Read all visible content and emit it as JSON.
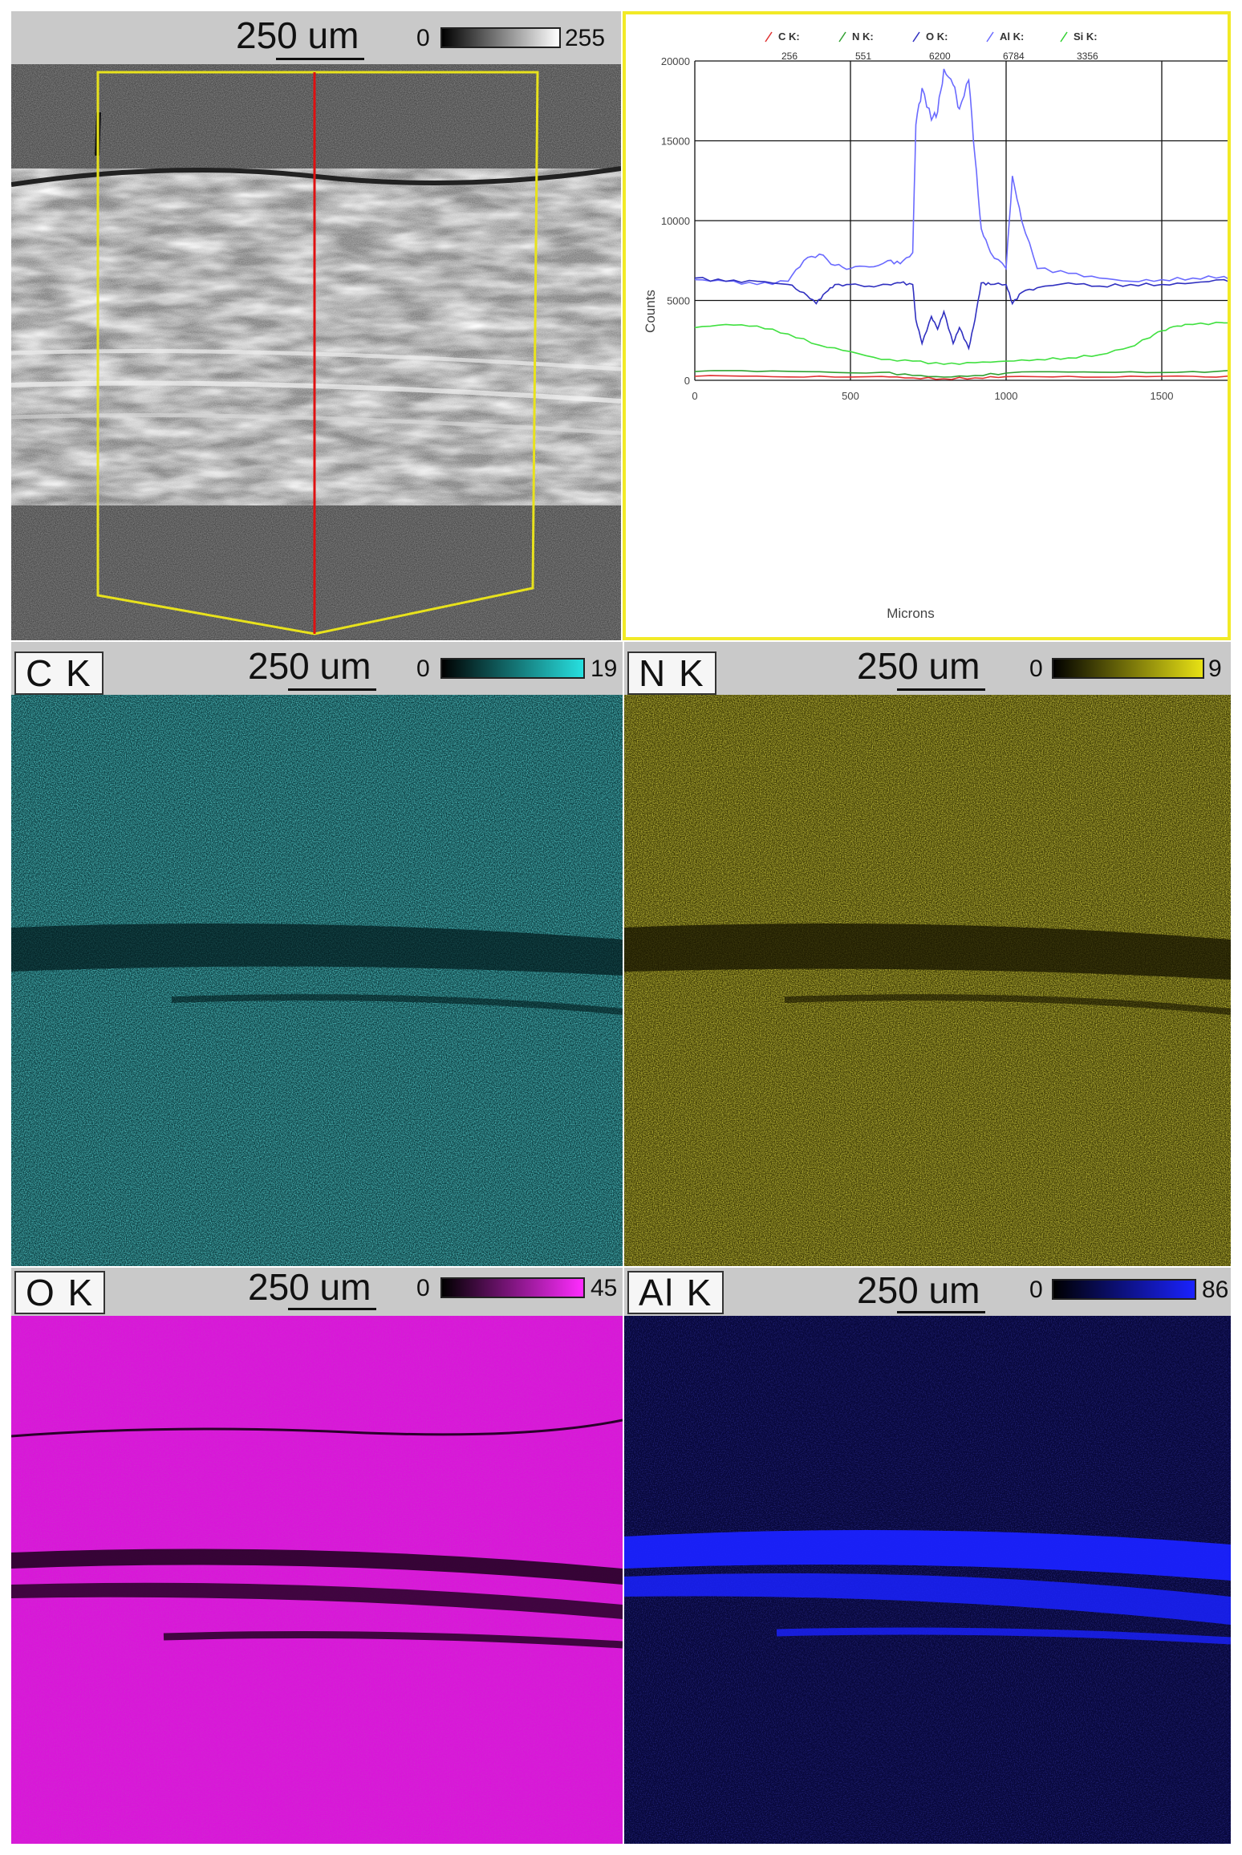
{
  "colors": {
    "sem": "#8a8a8a",
    "C_K": "#27e0e0",
    "N_K": "#e8e214",
    "O_K": "#ff2cff",
    "Al_K": "#1a22ff",
    "chart_frame": "#f2ea26",
    "line_red": "#e01010",
    "roi_yellow": "#e8e21c"
  },
  "panels": {
    "sem": {
      "element": "",
      "scale": "250 um",
      "cb_min": "0",
      "cb_max": "255"
    },
    "c_k": {
      "element": "C K",
      "scale": "250 um",
      "cb_min": "0",
      "cb_max": "19"
    },
    "n_k": {
      "element": "N K",
      "scale": "250 um",
      "cb_min": "0",
      "cb_max": "9"
    },
    "o_k": {
      "element": "O K",
      "scale": "250 um",
      "cb_min": "0",
      "cb_max": "45"
    },
    "al_k": {
      "element": "Al K",
      "scale": "250 um",
      "cb_min": "0",
      "cb_max": "86"
    }
  },
  "chart_data": {
    "type": "line",
    "title": "",
    "xlabel": "Microns",
    "ylabel": "Counts",
    "xlim": [
      0,
      2000
    ],
    "ylim": [
      0,
      20000
    ],
    "xticks": [
      "0",
      "500",
      "1000",
      "1500",
      "2000"
    ],
    "yticks": [
      "0",
      "5000",
      "10000",
      "15000",
      "20000"
    ],
    "grid": true,
    "legend_position": "top",
    "legend": [
      {
        "label": "C K:",
        "value": "256",
        "color": "#e03030"
      },
      {
        "label": "N K:",
        "value": "551",
        "color": "#30a030"
      },
      {
        "label": "O K:",
        "value": "6200",
        "color": "#3030c0"
      },
      {
        "label": "Al K:",
        "value": "6784",
        "color": "#6a6aff"
      },
      {
        "label": "Si K:",
        "value": "3356",
        "color": "#30d030"
      }
    ],
    "series": [
      {
        "name": "Al K",
        "color": "#6a6aff",
        "x": [
          0,
          100,
          200,
          300,
          350,
          400,
          450,
          500,
          560,
          620,
          660,
          700,
          710,
          730,
          760,
          780,
          800,
          830,
          850,
          880,
          900,
          920,
          950,
          1000,
          1020,
          1050,
          1100,
          1200,
          1300,
          1400,
          1500,
          1600,
          1700,
          1750
        ],
        "y": [
          6300,
          6200,
          6000,
          6200,
          7500,
          7900,
          7200,
          7000,
          7100,
          7500,
          7300,
          8000,
          16000,
          18300,
          16300,
          16800,
          19500,
          18500,
          17000,
          18800,
          14000,
          9500,
          8000,
          7000,
          12800,
          10000,
          7000,
          6700,
          6400,
          6200,
          6300,
          6400,
          6500,
          6300
        ]
      },
      {
        "name": "O K",
        "color": "#3030c0",
        "x": [
          0,
          100,
          200,
          300,
          350,
          390,
          420,
          450,
          500,
          560,
          620,
          660,
          700,
          710,
          730,
          760,
          780,
          800,
          830,
          850,
          880,
          900,
          920,
          950,
          1000,
          1020,
          1050,
          1100,
          1200,
          1300,
          1400,
          1500,
          1600,
          1700,
          1750
        ],
        "y": [
          6400,
          6200,
          6200,
          6000,
          5500,
          4800,
          5500,
          6000,
          6000,
          5900,
          6000,
          6100,
          6000,
          3800,
          2300,
          4000,
          3200,
          4300,
          2300,
          3300,
          2000,
          3800,
          6100,
          6000,
          6000,
          4800,
          5500,
          5800,
          6100,
          5900,
          6000,
          6000,
          6100,
          6300,
          6200
        ]
      },
      {
        "name": "Si K",
        "color": "#40e040",
        "x": [
          0,
          100,
          200,
          300,
          400,
          500,
          600,
          700,
          800,
          900,
          1000,
          1100,
          1200,
          1300,
          1400,
          1450,
          1500,
          1550,
          1600,
          1700,
          1750
        ],
        "y": [
          3300,
          3500,
          3400,
          2900,
          2200,
          1800,
          1300,
          1200,
          1000,
          1100,
          1200,
          1300,
          1400,
          1600,
          2100,
          2600,
          3100,
          3400,
          3500,
          3600,
          3500
        ]
      },
      {
        "name": "N K",
        "color": "#30a030",
        "x": [
          0,
          200,
          400,
          600,
          700,
          800,
          900,
          1000,
          1200,
          1400,
          1600,
          1750
        ],
        "y": [
          550,
          550,
          540,
          500,
          300,
          200,
          300,
          450,
          520,
          540,
          550,
          550
        ]
      },
      {
        "name": "C K",
        "color": "#e03030",
        "x": [
          0,
          200,
          400,
          600,
          700,
          800,
          900,
          1000,
          1200,
          1400,
          1600,
          1750
        ],
        "y": [
          250,
          260,
          260,
          240,
          150,
          100,
          150,
          230,
          250,
          260,
          250,
          250
        ]
      }
    ]
  }
}
